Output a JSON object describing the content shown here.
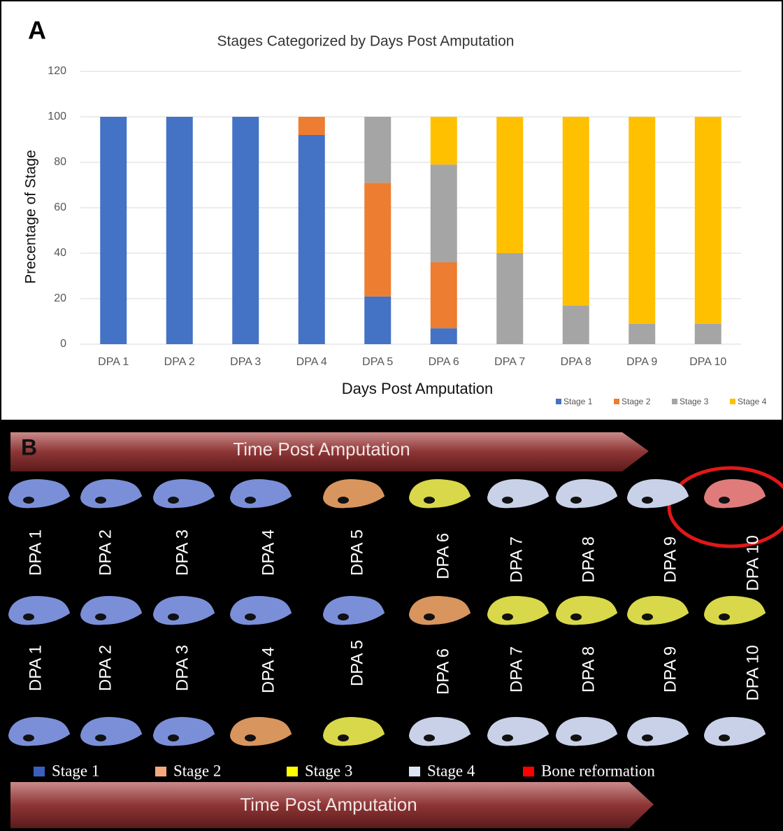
{
  "chart_data": {
    "type": "bar",
    "stacked": true,
    "panel_label": "A",
    "title": "Stages Categorized by Days Post Amputation",
    "x_label": "Days  Post Amputation",
    "y_label": "Precentage of Stage",
    "categories": [
      "DPA 1",
      "DPA 2",
      "DPA 3",
      "DPA 4",
      "DPA 5",
      "DPA 6",
      "DPA 7",
      "DPA 8",
      "DPA 9",
      "DPA 10"
    ],
    "series": [
      {
        "name": "Stage 1",
        "color": "#4472c4",
        "values": [
          100,
          100,
          100,
          92,
          21,
          7,
          0,
          0,
          0,
          0
        ]
      },
      {
        "name": "Stage 2",
        "color": "#ed7d31",
        "values": [
          0,
          0,
          0,
          8,
          50,
          29,
          0,
          0,
          0,
          0
        ]
      },
      {
        "name": "Stage 3",
        "color": "#a5a5a5",
        "values": [
          0,
          0,
          0,
          0,
          29,
          43,
          40,
          17,
          9,
          9
        ]
      },
      {
        "name": "Stage 4",
        "color": "#ffc000",
        "values": [
          0,
          0,
          0,
          0,
          0,
          21,
          60,
          83,
          91,
          91
        ]
      }
    ],
    "ylim": [
      0,
      120
    ],
    "yticks": [
      0,
      20,
      40,
      60,
      80,
      100,
      120
    ],
    "grid": true,
    "legend": "bottom-right"
  },
  "panel_b": {
    "label": "B",
    "arrow_top": "Time Post Amputation",
    "arrow_bottom": "Time Post Amputation",
    "rows": [
      {
        "labels": [
          "DPA 1",
          "DPA 2",
          "DPA 3",
          "DPA 4",
          "DPA 5",
          "DPA 6",
          "DPA 7",
          "DPA 8",
          "DPA 9",
          "DPA 10"
        ],
        "colors": [
          "#7b8fd8",
          "#7b8fd8",
          "#7b8fd8",
          "#7b8fd8",
          "#d9955e",
          "#d8d84a",
          "#c9d1e8",
          "#c9d1e8",
          "#c9d1e8",
          "#e07b7b"
        ]
      },
      {
        "labels": [
          "DPA 1",
          "DPA 2",
          "DPA 3",
          "DPA 4",
          "DPA 5",
          "DPA 6",
          "DPA 7",
          "DPA 8",
          "DPA 9",
          "DPA 10"
        ],
        "colors": [
          "#7b8fd8",
          "#7b8fd8",
          "#7b8fd8",
          "#7b8fd8",
          "#7b8fd8",
          "#d9955e",
          "#d8d84a",
          "#d8d84a",
          "#d8d84a",
          "#d8d84a"
        ]
      },
      {
        "colors": [
          "#7b8fd8",
          "#7b8fd8",
          "#7b8fd8",
          "#d9955e",
          "#d8d84a",
          "#c9d1e8",
          "#c9d1e8",
          "#c9d1e8",
          "#c9d1e8",
          "#c9d1e8"
        ]
      }
    ],
    "legend": [
      {
        "name": "Stage 1",
        "color": "#3a5fbf"
      },
      {
        "name": "Stage 2",
        "color": "#f4a97c"
      },
      {
        "name": "Stage 3",
        "color": "#ffff00"
      },
      {
        "name": "Stage 4",
        "color": "#dde6f5"
      },
      {
        "name": "Bone reformation",
        "color": "#ff0000"
      }
    ]
  }
}
